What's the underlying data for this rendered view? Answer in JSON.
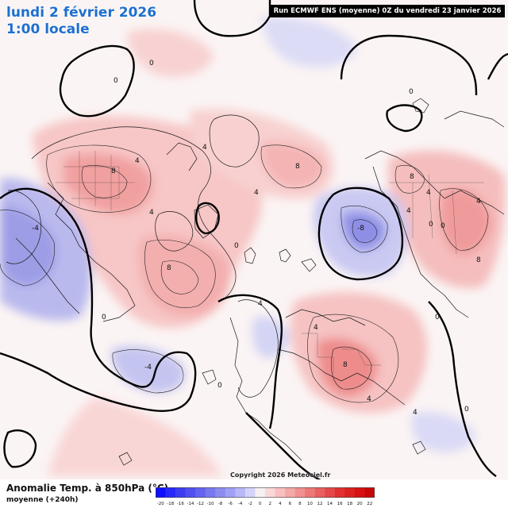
{
  "header": {
    "date_title": "lundi 2 février 2026",
    "time_title": "1:00 locale",
    "run_info": "Run ECMWF ENS (moyenne) 0Z du vendredi 23 janvier 2026"
  },
  "footer": {
    "copyright": "Copyright 2026 Meteociel.fr",
    "legend_title": "Anomalie Temp. à 850hPa (°C)",
    "legend_subtitle": "moyenne   (+240h)"
  },
  "legend_scale": {
    "values": [
      -20,
      -18,
      -16,
      -14,
      -12,
      -10,
      -8,
      -6,
      -4,
      -2,
      0,
      2,
      4,
      6,
      8,
      10,
      12,
      14,
      16,
      18,
      20,
      22
    ],
    "tick_labels": [
      "-20",
      "-18",
      "-16",
      "-14",
      "-12",
      "-10",
      "-8",
      "-6",
      "-4",
      "-2",
      "0",
      "2",
      "4",
      "6",
      "8",
      "10",
      "12",
      "14",
      "16",
      "18",
      "20",
      "22"
    ],
    "colors": [
      "#1010ff",
      "#2828f8",
      "#3c3cf0",
      "#5050f0",
      "#6464f0",
      "#7878f0",
      "#8c8cf0",
      "#a0a0f4",
      "#b8b8f8",
      "#d4d4fa",
      "#f6f0f4",
      "#fad8d8",
      "#f8c0c0",
      "#f4a8a8",
      "#f09090",
      "#ec7878",
      "#e86060",
      "#e44848",
      "#e03030",
      "#dc2020",
      "#d81010",
      "#c80808"
    ]
  },
  "contour_labels": [
    "0",
    "0",
    "0",
    "0",
    "0",
    "0",
    "0",
    "0",
    "0",
    "0",
    "4",
    "4",
    "4",
    "4",
    "4",
    "4",
    "4",
    "4",
    "4",
    "4",
    "4",
    "8",
    "8",
    "8",
    "8",
    "8",
    "8",
    "-4",
    "-4",
    "-8"
  ]
}
